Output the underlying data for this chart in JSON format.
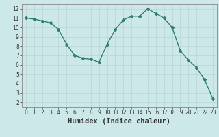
{
  "x": [
    0,
    1,
    2,
    3,
    4,
    5,
    6,
    7,
    8,
    9,
    10,
    11,
    12,
    13,
    14,
    15,
    16,
    17,
    18,
    19,
    20,
    21,
    22,
    23
  ],
  "y": [
    11.0,
    10.9,
    10.7,
    10.5,
    9.8,
    8.2,
    7.0,
    6.7,
    6.6,
    6.3,
    8.2,
    9.8,
    10.8,
    11.2,
    11.2,
    12.0,
    11.5,
    11.0,
    10.0,
    7.5,
    6.5,
    5.7,
    4.4,
    2.4
  ],
  "line_color": "#2e7d6e",
  "marker": "D",
  "marker_size": 2.0,
  "line_width": 1.0,
  "xlabel": "Humidex (Indice chaleur)",
  "xlim": [
    -0.5,
    23.5
  ],
  "ylim": [
    1.5,
    12.5
  ],
  "yticks": [
    2,
    3,
    4,
    5,
    6,
    7,
    8,
    9,
    10,
    11,
    12
  ],
  "xticks": [
    0,
    1,
    2,
    3,
    4,
    5,
    6,
    7,
    8,
    9,
    10,
    11,
    12,
    13,
    14,
    15,
    16,
    17,
    18,
    19,
    20,
    21,
    22,
    23
  ],
  "bg_color": "#cde8e8",
  "grid_color": "#b8d4d4",
  "tick_label_fontsize": 5.5,
  "xlabel_fontsize": 7.5
}
